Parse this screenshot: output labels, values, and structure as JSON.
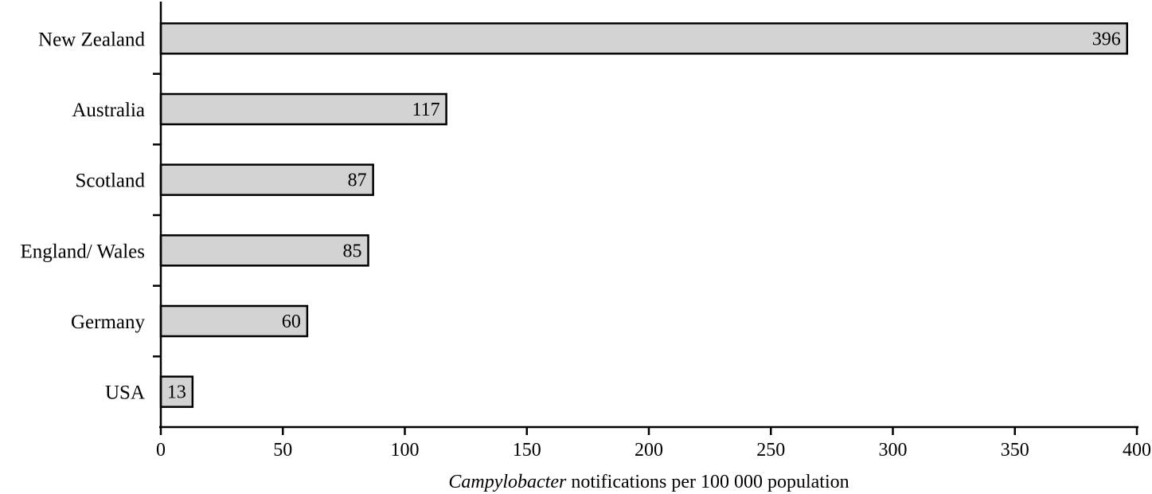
{
  "chart_data": {
    "type": "bar",
    "orientation": "horizontal",
    "categories": [
      "New Zealand",
      "Australia",
      "Scotland",
      "England/ Wales",
      "Germany",
      "USA"
    ],
    "values": [
      396,
      117,
      87,
      85,
      60,
      13
    ],
    "value_labels": [
      "396",
      "117",
      "87",
      "85",
      "60",
      "13"
    ],
    "xlabel": {
      "italic": "Campylobacter",
      "rest": " notifications per 100 000 population"
    },
    "ylabel": "",
    "xlim": [
      0,
      400
    ],
    "xticks": [
      0,
      50,
      100,
      150,
      200,
      250,
      300,
      350,
      400
    ],
    "xtick_labels": [
      "0",
      "50",
      "100",
      "150",
      "200",
      "250",
      "300",
      "350",
      "400"
    ],
    "grid": false,
    "legend": "none",
    "colors": {
      "bar_fill": "#d3d3d3",
      "bar_stroke": "#000000",
      "axis": "#000000"
    }
  }
}
